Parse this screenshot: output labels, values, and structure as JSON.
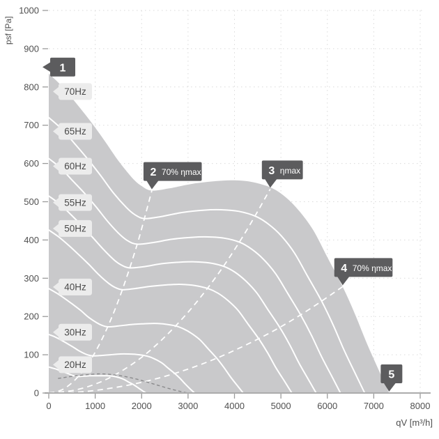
{
  "chart_data": {
    "type": "line",
    "title": "",
    "xlabel": "qV [m³/h]",
    "ylabel": "psf [Pa]",
    "xlim": [
      0,
      8000
    ],
    "ylim": [
      0,
      1000
    ],
    "x_ticks": [
      0,
      1000,
      2000,
      3000,
      4000,
      5000,
      6000,
      7000,
      8000
    ],
    "y_ticks": [
      0,
      100,
      200,
      300,
      400,
      500,
      600,
      700,
      800,
      900,
      1000
    ],
    "grid": "dotted",
    "legend": "none",
    "series": [
      {
        "name": "70Hz",
        "style": "envelope-filled",
        "points": [
          [
            0,
            835
          ],
          [
            300,
            800
          ],
          [
            600,
            756
          ],
          [
            900,
            710
          ],
          [
            1200,
            660
          ],
          [
            1500,
            607
          ],
          [
            1800,
            562
          ],
          [
            2000,
            541
          ],
          [
            2220,
            529
          ],
          [
            2600,
            535
          ],
          [
            3100,
            547
          ],
          [
            3600,
            554
          ],
          [
            4000,
            556
          ],
          [
            4400,
            551
          ],
          [
            4800,
            536
          ],
          [
            5100,
            512
          ],
          [
            5400,
            475
          ],
          [
            5700,
            425
          ],
          [
            6000,
            355
          ],
          [
            6330,
            278
          ],
          [
            6600,
            205
          ],
          [
            6850,
            130
          ],
          [
            7100,
            62
          ],
          [
            7330,
            0
          ]
        ]
      },
      {
        "name": "65Hz",
        "style": "white-line",
        "points": [
          [
            0,
            720
          ],
          [
            279,
            690
          ],
          [
            557,
            652
          ],
          [
            836,
            612
          ],
          [
            1114,
            569
          ],
          [
            1393,
            523
          ],
          [
            1671,
            485
          ],
          [
            1857,
            466
          ],
          [
            2061,
            456
          ],
          [
            2414,
            461
          ],
          [
            2879,
            472
          ],
          [
            3343,
            478
          ],
          [
            3714,
            479
          ],
          [
            4086,
            475
          ],
          [
            4457,
            462
          ],
          [
            4736,
            441
          ],
          [
            5014,
            410
          ],
          [
            5293,
            366
          ],
          [
            5571,
            306
          ],
          [
            5878,
            240
          ],
          [
            6129,
            177
          ],
          [
            6361,
            112
          ],
          [
            6593,
            53
          ],
          [
            6806,
            0
          ]
        ]
      },
      {
        "name": "60Hz",
        "style": "white-line",
        "points": [
          [
            0,
            613
          ],
          [
            257,
            588
          ],
          [
            514,
            555
          ],
          [
            771,
            522
          ],
          [
            1029,
            485
          ],
          [
            1286,
            446
          ],
          [
            1543,
            413
          ],
          [
            1714,
            397
          ],
          [
            1903,
            389
          ],
          [
            2229,
            393
          ],
          [
            2657,
            402
          ],
          [
            3086,
            407
          ],
          [
            3429,
            408
          ],
          [
            3771,
            405
          ],
          [
            4114,
            394
          ],
          [
            4371,
            376
          ],
          [
            4629,
            349
          ],
          [
            4886,
            312
          ],
          [
            5143,
            261
          ],
          [
            5426,
            204
          ],
          [
            5657,
            151
          ],
          [
            5871,
            96
          ],
          [
            6086,
            46
          ],
          [
            6283,
            0
          ]
        ]
      },
      {
        "name": "55Hz",
        "style": "white-line",
        "points": [
          [
            0,
            515
          ],
          [
            236,
            494
          ],
          [
            471,
            467
          ],
          [
            707,
            438
          ],
          [
            943,
            407
          ],
          [
            1179,
            375
          ],
          [
            1414,
            347
          ],
          [
            1571,
            334
          ],
          [
            1744,
            327
          ],
          [
            2043,
            330
          ],
          [
            2436,
            338
          ],
          [
            2829,
            342
          ],
          [
            3143,
            343
          ],
          [
            3457,
            340
          ],
          [
            3771,
            331
          ],
          [
            4007,
            316
          ],
          [
            4243,
            293
          ],
          [
            4479,
            262
          ],
          [
            4714,
            219
          ],
          [
            4973,
            172
          ],
          [
            5186,
            127
          ],
          [
            5382,
            80
          ],
          [
            5579,
            38
          ],
          [
            5759,
            0
          ]
        ]
      },
      {
        "name": "50Hz",
        "style": "white-line",
        "points": [
          [
            0,
            426
          ],
          [
            214,
            408
          ],
          [
            429,
            386
          ],
          [
            643,
            362
          ],
          [
            857,
            337
          ],
          [
            1071,
            310
          ],
          [
            1286,
            287
          ],
          [
            1429,
            276
          ],
          [
            1586,
            270
          ],
          [
            1857,
            273
          ],
          [
            2214,
            279
          ],
          [
            2571,
            283
          ],
          [
            2857,
            284
          ],
          [
            3143,
            281
          ],
          [
            3429,
            273
          ],
          [
            3643,
            261
          ],
          [
            3857,
            242
          ],
          [
            4071,
            217
          ],
          [
            4286,
            181
          ],
          [
            4521,
            142
          ],
          [
            4714,
            105
          ],
          [
            4893,
            66
          ],
          [
            5071,
            32
          ],
          [
            5236,
            0
          ]
        ]
      },
      {
        "name": "40Hz",
        "style": "white-line",
        "points": [
          [
            0,
            273
          ],
          [
            171,
            261
          ],
          [
            343,
            247
          ],
          [
            514,
            232
          ],
          [
            686,
            216
          ],
          [
            857,
            198
          ],
          [
            1029,
            184
          ],
          [
            1143,
            177
          ],
          [
            1269,
            173
          ],
          [
            1486,
            175
          ],
          [
            1771,
            179
          ],
          [
            2057,
            181
          ],
          [
            2286,
            182
          ],
          [
            2514,
            180
          ],
          [
            2743,
            175
          ],
          [
            2914,
            167
          ],
          [
            3086,
            155
          ],
          [
            3257,
            139
          ],
          [
            3429,
            116
          ],
          [
            3617,
            91
          ],
          [
            3771,
            67
          ],
          [
            3914,
            42
          ],
          [
            4057,
            20
          ],
          [
            4189,
            0
          ]
        ]
      },
      {
        "name": "30Hz",
        "style": "white-line",
        "points": [
          [
            0,
            153
          ],
          [
            129,
            147
          ],
          [
            257,
            139
          ],
          [
            386,
            130
          ],
          [
            514,
            121
          ],
          [
            643,
            111
          ],
          [
            771,
            103
          ],
          [
            857,
            99
          ],
          [
            951,
            97
          ],
          [
            1114,
            98
          ],
          [
            1329,
            100
          ],
          [
            1543,
            102
          ],
          [
            1714,
            102
          ],
          [
            1886,
            101
          ],
          [
            2057,
            98
          ],
          [
            2186,
            94
          ],
          [
            2314,
            87
          ],
          [
            2443,
            78
          ],
          [
            2571,
            65
          ],
          [
            2713,
            51
          ],
          [
            2829,
            38
          ],
          [
            2936,
            24
          ],
          [
            3043,
            11
          ],
          [
            3141,
            0
          ]
        ]
      },
      {
        "name": "20Hz",
        "style": "white-line",
        "points": [
          [
            0,
            68
          ],
          [
            86,
            65
          ],
          [
            171,
            62
          ],
          [
            257,
            58
          ],
          [
            343,
            54
          ],
          [
            429,
            50
          ],
          [
            514,
            46
          ],
          [
            571,
            44
          ],
          [
            634,
            43
          ],
          [
            743,
            44
          ],
          [
            886,
            45
          ],
          [
            1029,
            45
          ],
          [
            1143,
            45
          ],
          [
            1257,
            45
          ],
          [
            1371,
            44
          ],
          [
            1457,
            42
          ],
          [
            1543,
            39
          ],
          [
            1629,
            35
          ],
          [
            1714,
            29
          ],
          [
            1809,
            23
          ],
          [
            1886,
            17
          ],
          [
            1957,
            11
          ],
          [
            2029,
            5
          ],
          [
            2094,
            0
          ]
        ]
      }
    ],
    "efficiency_lines": [
      {
        "name": "70% ηmax",
        "points": [
          [
            0,
            0
          ],
          [
            278,
            8
          ],
          [
            555,
            33
          ],
          [
            833,
            74
          ],
          [
            1110,
            132
          ],
          [
            1388,
            207
          ],
          [
            1665,
            298
          ],
          [
            1943,
            405
          ],
          [
            2220,
            529
          ]
        ]
      },
      {
        "name": "ηmax",
        "points": [
          [
            0,
            0
          ],
          [
            530,
            7
          ],
          [
            1060,
            26
          ],
          [
            1590,
            59
          ],
          [
            2120,
            105
          ],
          [
            2650,
            165
          ],
          [
            3180,
            237
          ],
          [
            3710,
            322
          ],
          [
            4240,
            421
          ],
          [
            4770,
            533
          ]
        ]
      },
      {
        "name": "70% ηmax",
        "points": [
          [
            0,
            0
          ],
          [
            703,
            3
          ],
          [
            1407,
            14
          ],
          [
            2110,
            31
          ],
          [
            2813,
            55
          ],
          [
            3517,
            86
          ],
          [
            4220,
            124
          ],
          [
            4923,
            168
          ],
          [
            5627,
            220
          ],
          [
            6330,
            278
          ]
        ]
      }
    ],
    "aux_dashed_curve": {
      "points": [
        [
          200,
          38
        ],
        [
          600,
          45
        ],
        [
          1100,
          50
        ],
        [
          1500,
          46
        ],
        [
          1900,
          36
        ],
        [
          2300,
          22
        ],
        [
          2700,
          8
        ],
        [
          3000,
          0
        ]
      ]
    },
    "markers": [
      {
        "num": "1",
        "label": "",
        "anchor": [
          0,
          852
        ],
        "tail": "left"
      },
      {
        "num": "2",
        "label": "70% ηmax",
        "anchor": [
          2220,
          529
        ],
        "tail": "down"
      },
      {
        "num": "3",
        "label": "ηmax",
        "anchor": [
          4770,
          533
        ],
        "tail": "down"
      },
      {
        "num": "4",
        "label": "70% ηmax",
        "anchor": [
          6330,
          278
        ],
        "tail": "down"
      },
      {
        "num": "5",
        "label": "",
        "anchor": [
          7330,
          0
        ],
        "tail": "down"
      }
    ],
    "freq_labels": [
      {
        "label": "70Hz",
        "psf": 788
      },
      {
        "label": "65Hz",
        "psf": 684
      },
      {
        "label": "60Hz",
        "psf": 593
      },
      {
        "label": "55Hz",
        "psf": 498
      },
      {
        "label": "50Hz",
        "psf": 430
      },
      {
        "label": "40Hz",
        "psf": 277
      },
      {
        "label": "30Hz",
        "psf": 159
      },
      {
        "label": "20Hz",
        "psf": 74
      }
    ]
  },
  "colors": {
    "background": "#ffffff",
    "area_fill": "#c9c9cb",
    "curve_white": "#ffffff",
    "efficiency_dash": "#ffffff",
    "aux_dash": "#8a8a8c",
    "badge_bg": "#5c5c5e",
    "badge_text": "#ffffff",
    "pill_bg": "#ececec",
    "pill_text": "#4a4a4a",
    "grid": "#dadada",
    "axis_line": "#ababab",
    "tick": "#9a9a9a",
    "axis_text": "#4f4f4f"
  }
}
